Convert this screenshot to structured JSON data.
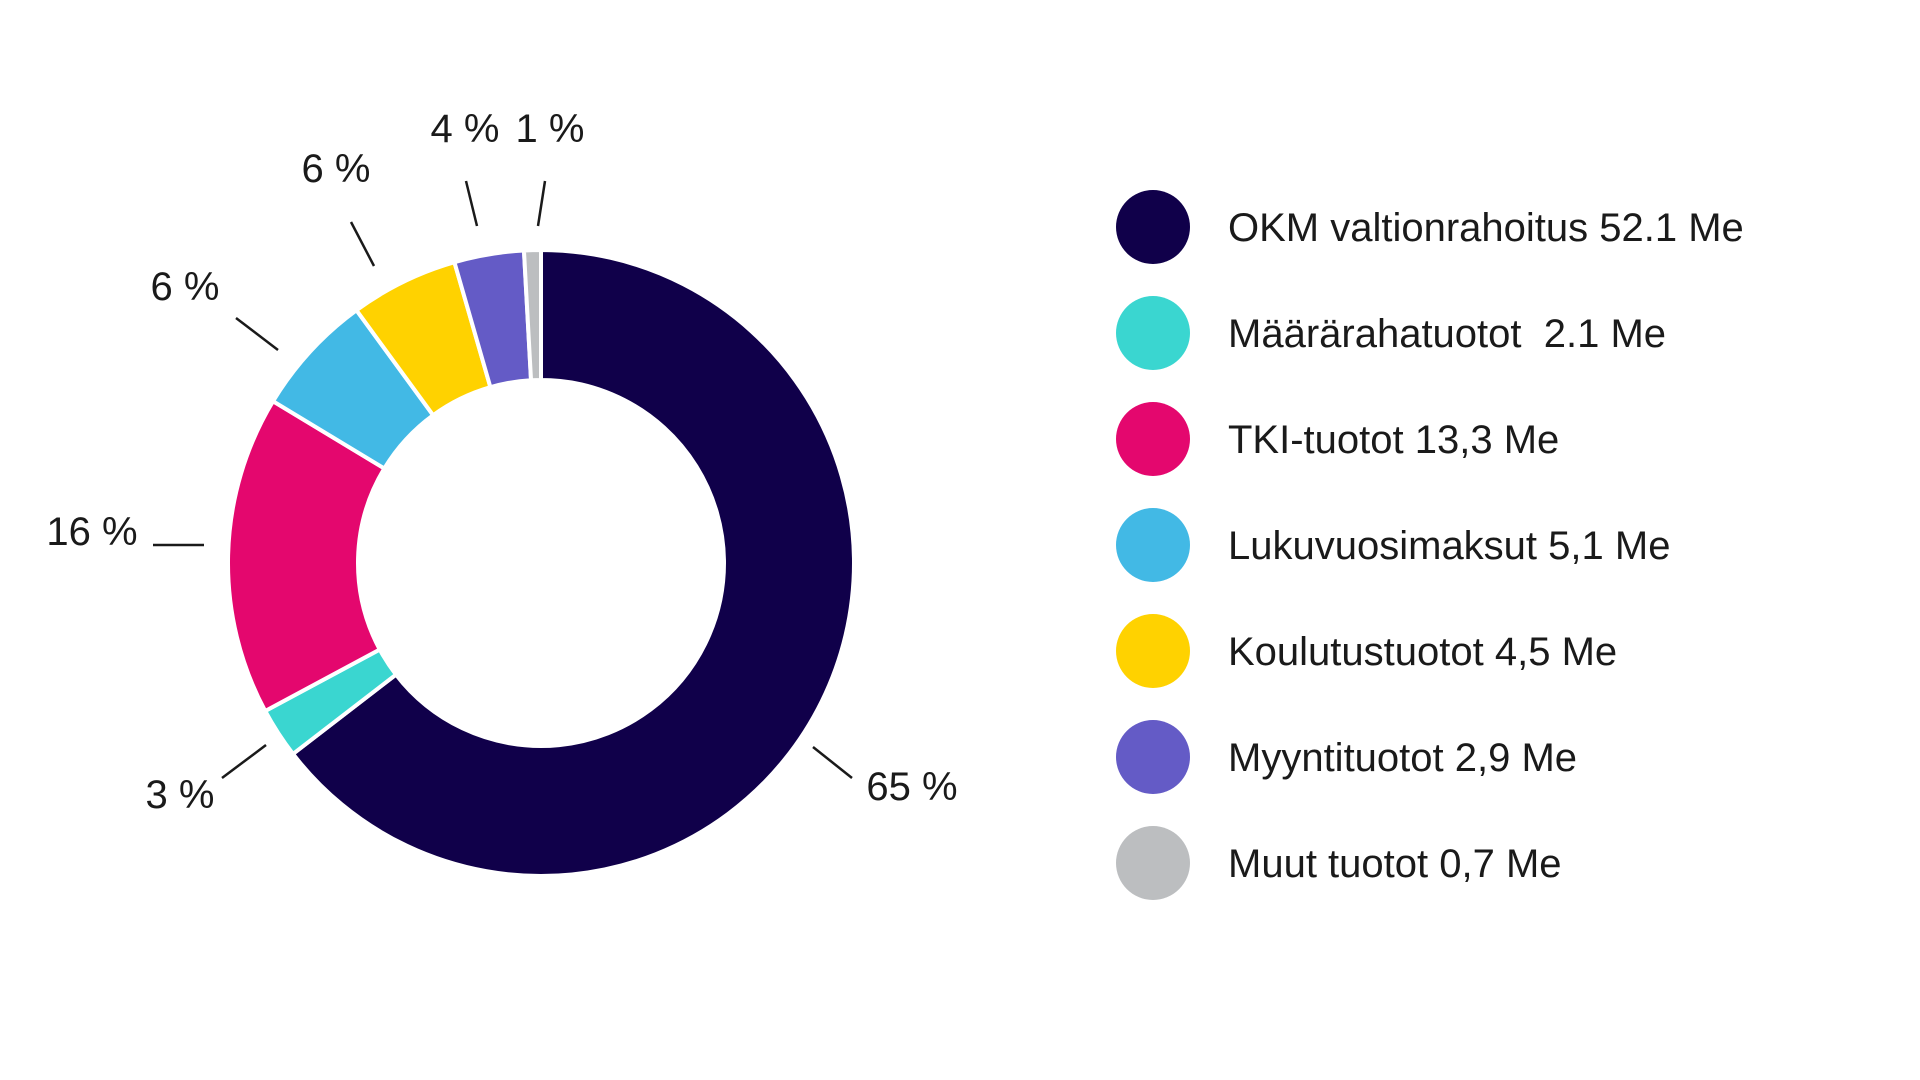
{
  "chart_data": {
    "type": "pie",
    "donut": true,
    "legend_position": "right",
    "slices": [
      {
        "label": "OKM valtionrahoitus 52.1 Me",
        "value": 52.1,
        "percent_label": "65 %",
        "color": "#10004a"
      },
      {
        "label": "Määrärahatuotot  2.1 Me",
        "value": 2.1,
        "percent_label": "3 %",
        "color": "#3ad6d0"
      },
      {
        "label": "TKI-tuotot 13,3 Me",
        "value": 13.3,
        "percent_label": "16 %",
        "color": "#e4076e"
      },
      {
        "label": "Lukuvuosimaksut 5,1 Me",
        "value": 5.1,
        "percent_label": "6 %",
        "color": "#42b9e5"
      },
      {
        "label": "Koulutustuotot 4,5 Me",
        "value": 4.5,
        "percent_label": "6 %",
        "color": "#ffd200"
      },
      {
        "label": "Myyntituotot 2,9 Me",
        "value": 2.9,
        "percent_label": "4 %",
        "color": "#645bc6"
      },
      {
        "label": "Muut tuotot 0,7 Me",
        "value": 0.7,
        "percent_label": "1 %",
        "color": "#bcbec0"
      }
    ]
  }
}
